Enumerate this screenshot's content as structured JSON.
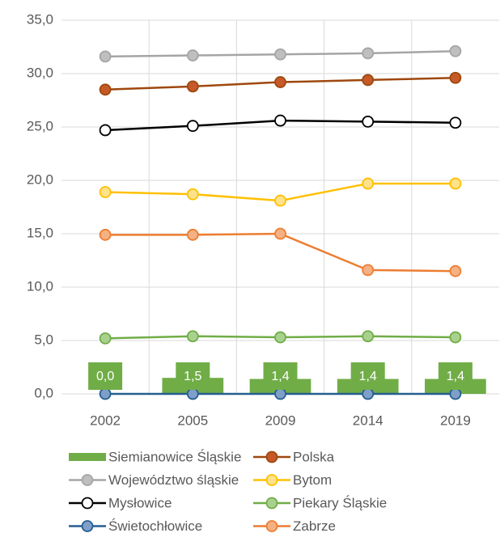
{
  "chart_data": {
    "type": "line",
    "categories": [
      "2002",
      "2005",
      "2009",
      "2014",
      "2019"
    ],
    "ylim": [
      0,
      35
    ],
    "yticks": [
      {
        "value": 0,
        "label": "0,0"
      },
      {
        "value": 5,
        "label": "5,0"
      },
      {
        "value": 10,
        "label": "10,0"
      },
      {
        "value": 15,
        "label": "15,0"
      },
      {
        "value": 20,
        "label": "20,0"
      },
      {
        "value": 25,
        "label": "25,0"
      },
      {
        "value": 30,
        "label": "30,0"
      },
      {
        "value": 35,
        "label": "35,0"
      }
    ],
    "grid": true,
    "series": [
      {
        "name": "Siemianowice Śląskie",
        "type": "bar",
        "color": "#70ad47",
        "values": [
          0,
          1.5,
          1.4,
          1.4,
          1.4
        ],
        "value_labels": [
          "0,0",
          "1,5",
          "1,4",
          "1,4",
          "1,4"
        ]
      },
      {
        "name": "Polska",
        "type": "line",
        "color": "#9e480e",
        "marker_color": "#c55a28",
        "values": [
          28.5,
          28.8,
          29.2,
          29.4,
          29.6
        ]
      },
      {
        "name": "Województwo śląskie",
        "type": "line",
        "color": "#a5a5a5",
        "marker_color": "#bfbfbf",
        "values": [
          31.6,
          31.7,
          31.8,
          31.9,
          32.1
        ]
      },
      {
        "name": "Bytom",
        "type": "line",
        "color": "#ffc000",
        "marker_color": "#ffe28a",
        "values": [
          18.9,
          18.7,
          18.1,
          19.7,
          19.7
        ]
      },
      {
        "name": "Mysłowice",
        "type": "line",
        "color": "#000000",
        "marker_color": "#ffffff",
        "values": [
          24.7,
          25.1,
          25.6,
          25.5,
          25.4
        ]
      },
      {
        "name": "Piekary Śląskie",
        "type": "line",
        "color": "#70ad47",
        "marker_color": "#a9d18e",
        "values": [
          5.2,
          5.4,
          5.3,
          5.4,
          5.3
        ]
      },
      {
        "name": "Świetochłowice",
        "type": "line",
        "color": "#255e91",
        "marker_color": "#7f9fc8",
        "values": [
          0,
          0,
          0,
          0,
          0
        ]
      },
      {
        "name": "Zabrze",
        "type": "line",
        "color": "#ed7d31",
        "marker_color": "#f4b183",
        "values": [
          14.9,
          14.9,
          15.0,
          11.6,
          11.5
        ]
      }
    ]
  }
}
